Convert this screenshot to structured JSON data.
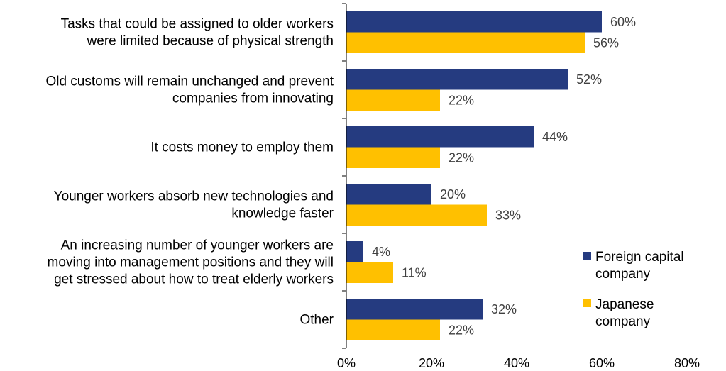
{
  "chart_data": {
    "type": "bar",
    "orientation": "horizontal",
    "categories": [
      [
        "Tasks that could be assigned to older workers",
        "were limited because of physical strength"
      ],
      [
        "Old customs will remain unchanged and prevent",
        "companies from innovating"
      ],
      [
        "It costs money to employ them"
      ],
      [
        "Younger workers absorb new technologies and",
        "knowledge faster"
      ],
      [
        "An increasing number of younger workers are",
        "moving into management positions and they will",
        "get stressed about how to treat elderly workers"
      ],
      [
        "Other"
      ]
    ],
    "series": [
      {
        "name": "Foreign capital company",
        "legend_lines": [
          "Foreign capital",
          "company"
        ],
        "color": "#253B80",
        "values": [
          60,
          52,
          44,
          20,
          4,
          32
        ]
      },
      {
        "name": "Japanese company",
        "legend_lines": [
          "Japanese",
          "company"
        ],
        "color": "#FFC000",
        "values": [
          56,
          22,
          22,
          33,
          11,
          22
        ]
      }
    ],
    "value_suffix": "%",
    "xlim": [
      0,
      80
    ],
    "xticks": [
      0,
      20,
      40,
      60,
      80
    ],
    "xtick_labels": [
      "0%",
      "20%",
      "40%",
      "60%",
      "80%"
    ],
    "grid": false,
    "legend_position": "bottom-right"
  }
}
